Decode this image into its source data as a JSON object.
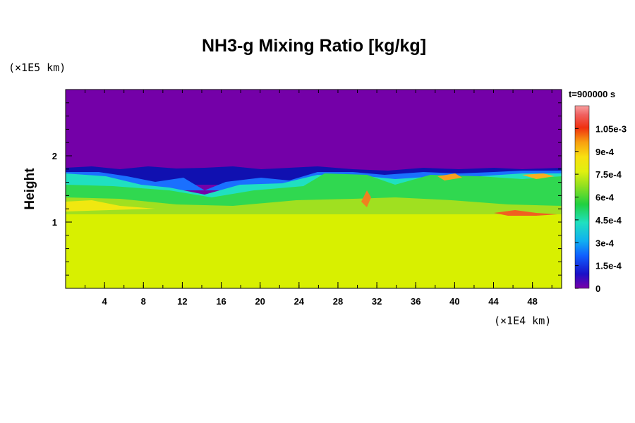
{
  "chart_data": {
    "type": "heatmap",
    "title": "NH3-g Mixing Ratio [kg/kg]",
    "ylabel": "Height",
    "y_unit": "(×1E5 km)",
    "x_unit": "(×1E4 km)",
    "time_label": "t=900000 s",
    "xlim": [
      0,
      51
    ],
    "ylim": [
      0,
      3
    ],
    "x_ticks": [
      "4",
      "8",
      "12",
      "16",
      "20",
      "24",
      "28",
      "32",
      "36",
      "40",
      "44",
      "48"
    ],
    "x_tick_values": [
      4,
      8,
      12,
      16,
      20,
      24,
      28,
      32,
      36,
      40,
      44,
      48
    ],
    "y_ticks": [
      "1",
      "2"
    ],
    "y_tick_values": [
      1,
      2
    ],
    "colorbar_labels": [
      "0",
      "1.5e-4",
      "3e-4",
      "4.5e-4",
      "6e-4",
      "7.5e-4",
      "9e-4",
      "1.05e-3"
    ],
    "colorbar_values": [
      0,
      0.00015,
      0.0003,
      0.00045,
      0.0006,
      0.00075,
      0.0009,
      0.00105
    ],
    "colorbar_range": [
      0,
      0.0012
    ],
    "field_description_values": {
      "upper_region_value": 0,
      "lower_region_value": 0.00078,
      "mixed_layer_height_range": [
        1.1,
        1.8
      ]
    },
    "grid": false,
    "legend_position": "right"
  }
}
